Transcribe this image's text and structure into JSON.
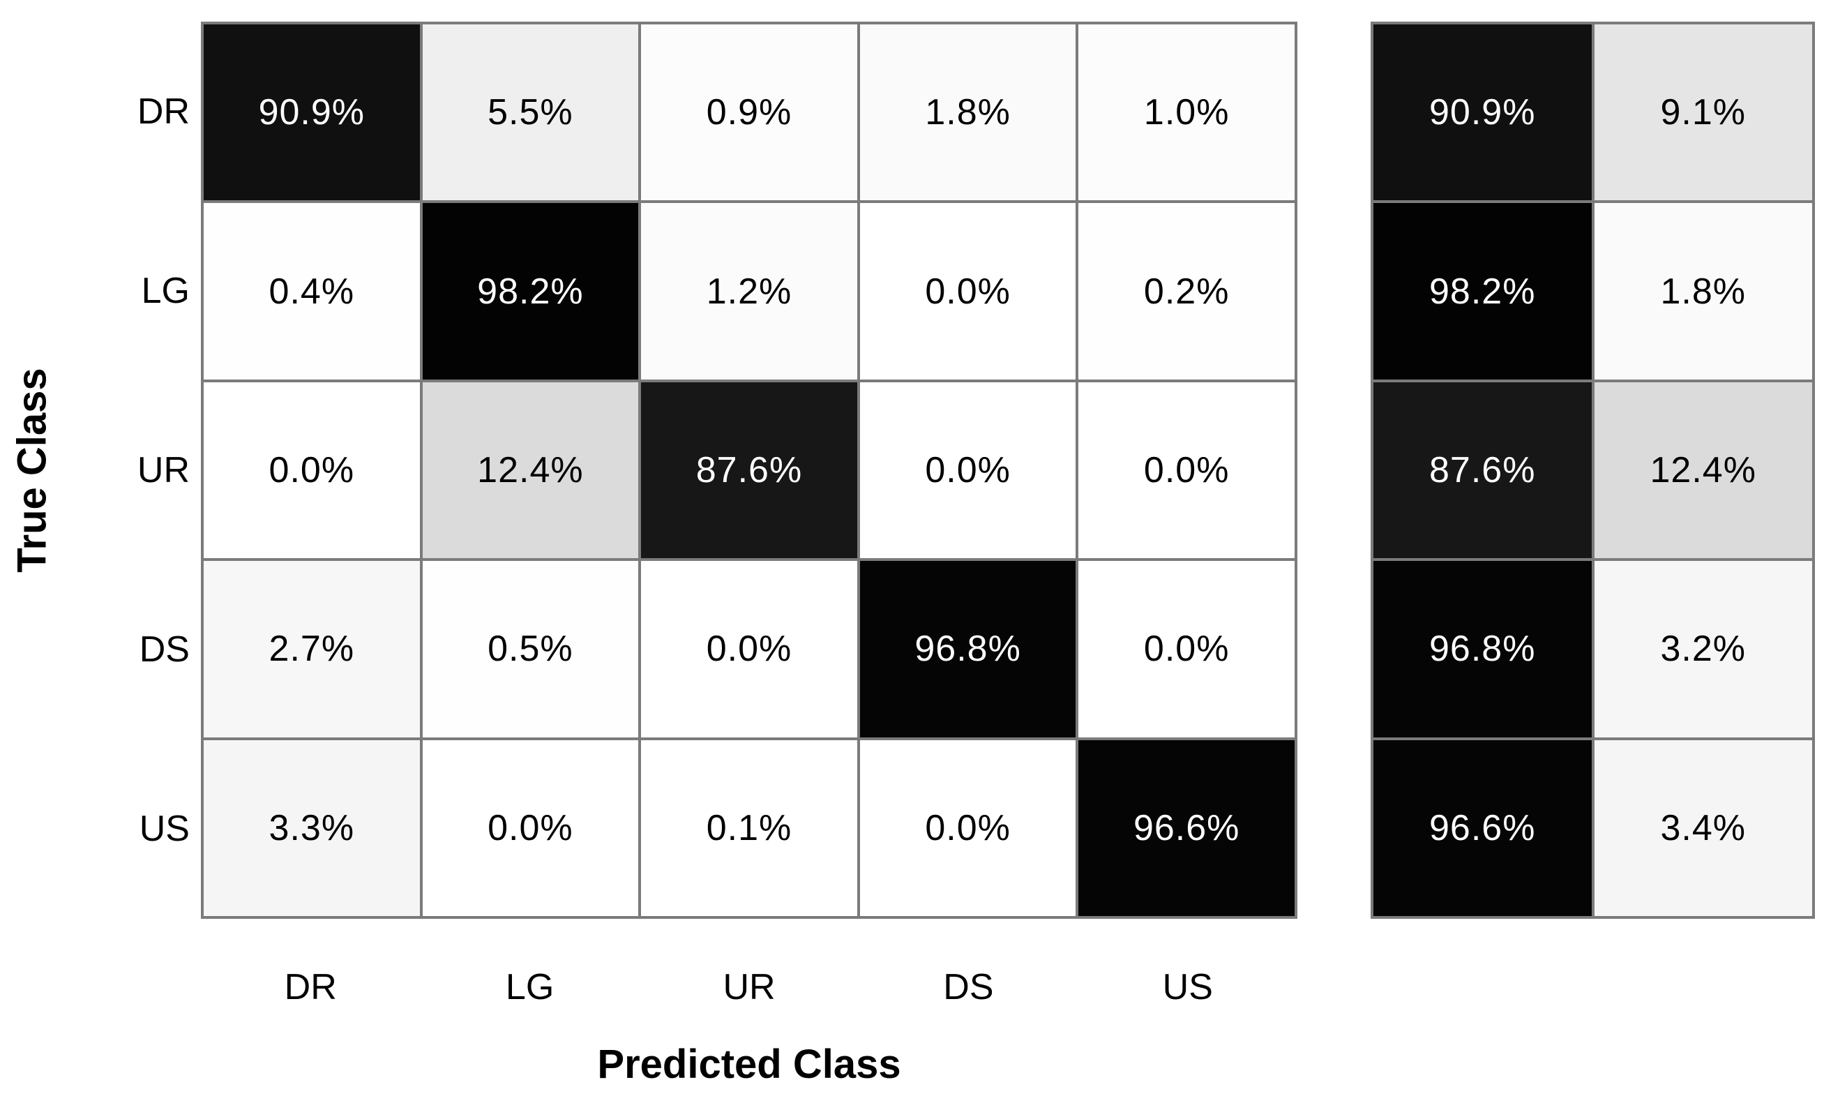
{
  "chart_data": {
    "type": "heatmap",
    "subtype": "confusion-matrix",
    "title": "",
    "xlabel": "Predicted Class",
    "ylabel": "True Class",
    "classes": [
      "DR",
      "LG",
      "UR",
      "DS",
      "US"
    ],
    "matrix_row_percent": [
      [
        90.9,
        5.5,
        0.9,
        1.8,
        1.0
      ],
      [
        0.4,
        98.2,
        1.2,
        0.0,
        0.2
      ],
      [
        0.0,
        12.4,
        87.6,
        0.0,
        0.0
      ],
      [
        2.7,
        0.5,
        0.0,
        96.8,
        0.0
      ],
      [
        3.3,
        0.0,
        0.1,
        0.0,
        96.6
      ]
    ],
    "row_summary": {
      "true_positive_rate_percent": [
        90.9,
        98.2,
        87.6,
        96.8,
        96.6
      ],
      "false_negative_rate_percent": [
        9.1,
        1.8,
        12.4,
        3.2,
        3.4
      ]
    },
    "value_format": "one-decimal-percent",
    "value_range": [
      0,
      100
    ],
    "legend": "none",
    "grid_on": true,
    "layout_hint": "main 5x5 row-normalized matrix on left; two-column per-row TPR/FNR summary matrix on right; shared row order",
    "colors": {
      "cell_low": "#ffffff",
      "cell_high": "#000000",
      "grid_line": "#7b7b7b",
      "text_on_dark": "#ffffff",
      "text_on_light": "#000000",
      "background": "#ffffff"
    }
  }
}
